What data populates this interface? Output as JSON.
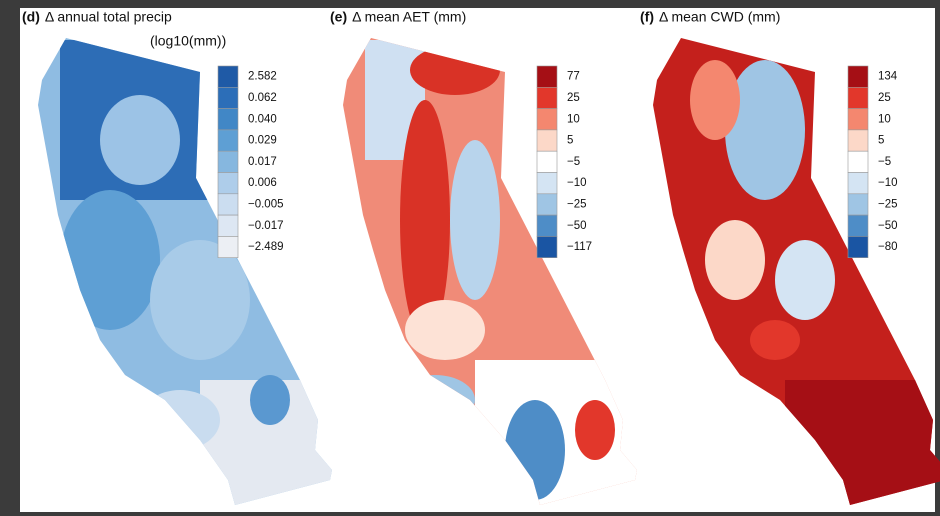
{
  "panels": [
    {
      "tag": "(d)",
      "title": "Δ annual total precip",
      "unit": "(log10(mm))",
      "legend": [
        {
          "label": "2.582",
          "color": "#1f5aa6"
        },
        {
          "label": "0.062",
          "color": "#2c6eb8"
        },
        {
          "label": "0.040",
          "color": "#4187c6"
        },
        {
          "label": "0.029",
          "color": "#5e9fd4"
        },
        {
          "label": "0.017",
          "color": "#86b7df"
        },
        {
          "label": "0.006",
          "color": "#aecdea"
        },
        {
          "label": "−0.005",
          "color": "#cbddf0"
        },
        {
          "label": "−0.017",
          "color": "#dde7f3"
        },
        {
          "label": "−2.489",
          "color": "#eceff4"
        }
      ]
    },
    {
      "tag": "(e)",
      "title": "Δ mean AET (mm)",
      "legend": [
        {
          "label": "77",
          "color": "#a50f15"
        },
        {
          "label": "25",
          "color": "#e2372b"
        },
        {
          "label": "10",
          "color": "#f4876f"
        },
        {
          "label": "5",
          "color": "#fcd8c8"
        },
        {
          "label": "−5",
          "color": "#ffffff"
        },
        {
          "label": "−10",
          "color": "#d4e4f3"
        },
        {
          "label": "−25",
          "color": "#9fc5e4"
        },
        {
          "label": "−50",
          "color": "#4e8dc7"
        },
        {
          "label": "−117",
          "color": "#1a55a3"
        }
      ]
    },
    {
      "tag": "(f)",
      "title": "Δ mean CWD (mm)",
      "legend": [
        {
          "label": "134",
          "color": "#a50f15"
        },
        {
          "label": "25",
          "color": "#e2372b"
        },
        {
          "label": "10",
          "color": "#f4876f"
        },
        {
          "label": "5",
          "color": "#fcd8c8"
        },
        {
          "label": "−5",
          "color": "#ffffff"
        },
        {
          "label": "−10",
          "color": "#d4e4f3"
        },
        {
          "label": "−25",
          "color": "#9fc5e4"
        },
        {
          "label": "−50",
          "color": "#4e8dc7"
        },
        {
          "label": "−80",
          "color": "#1a55a3"
        }
      ]
    }
  ]
}
